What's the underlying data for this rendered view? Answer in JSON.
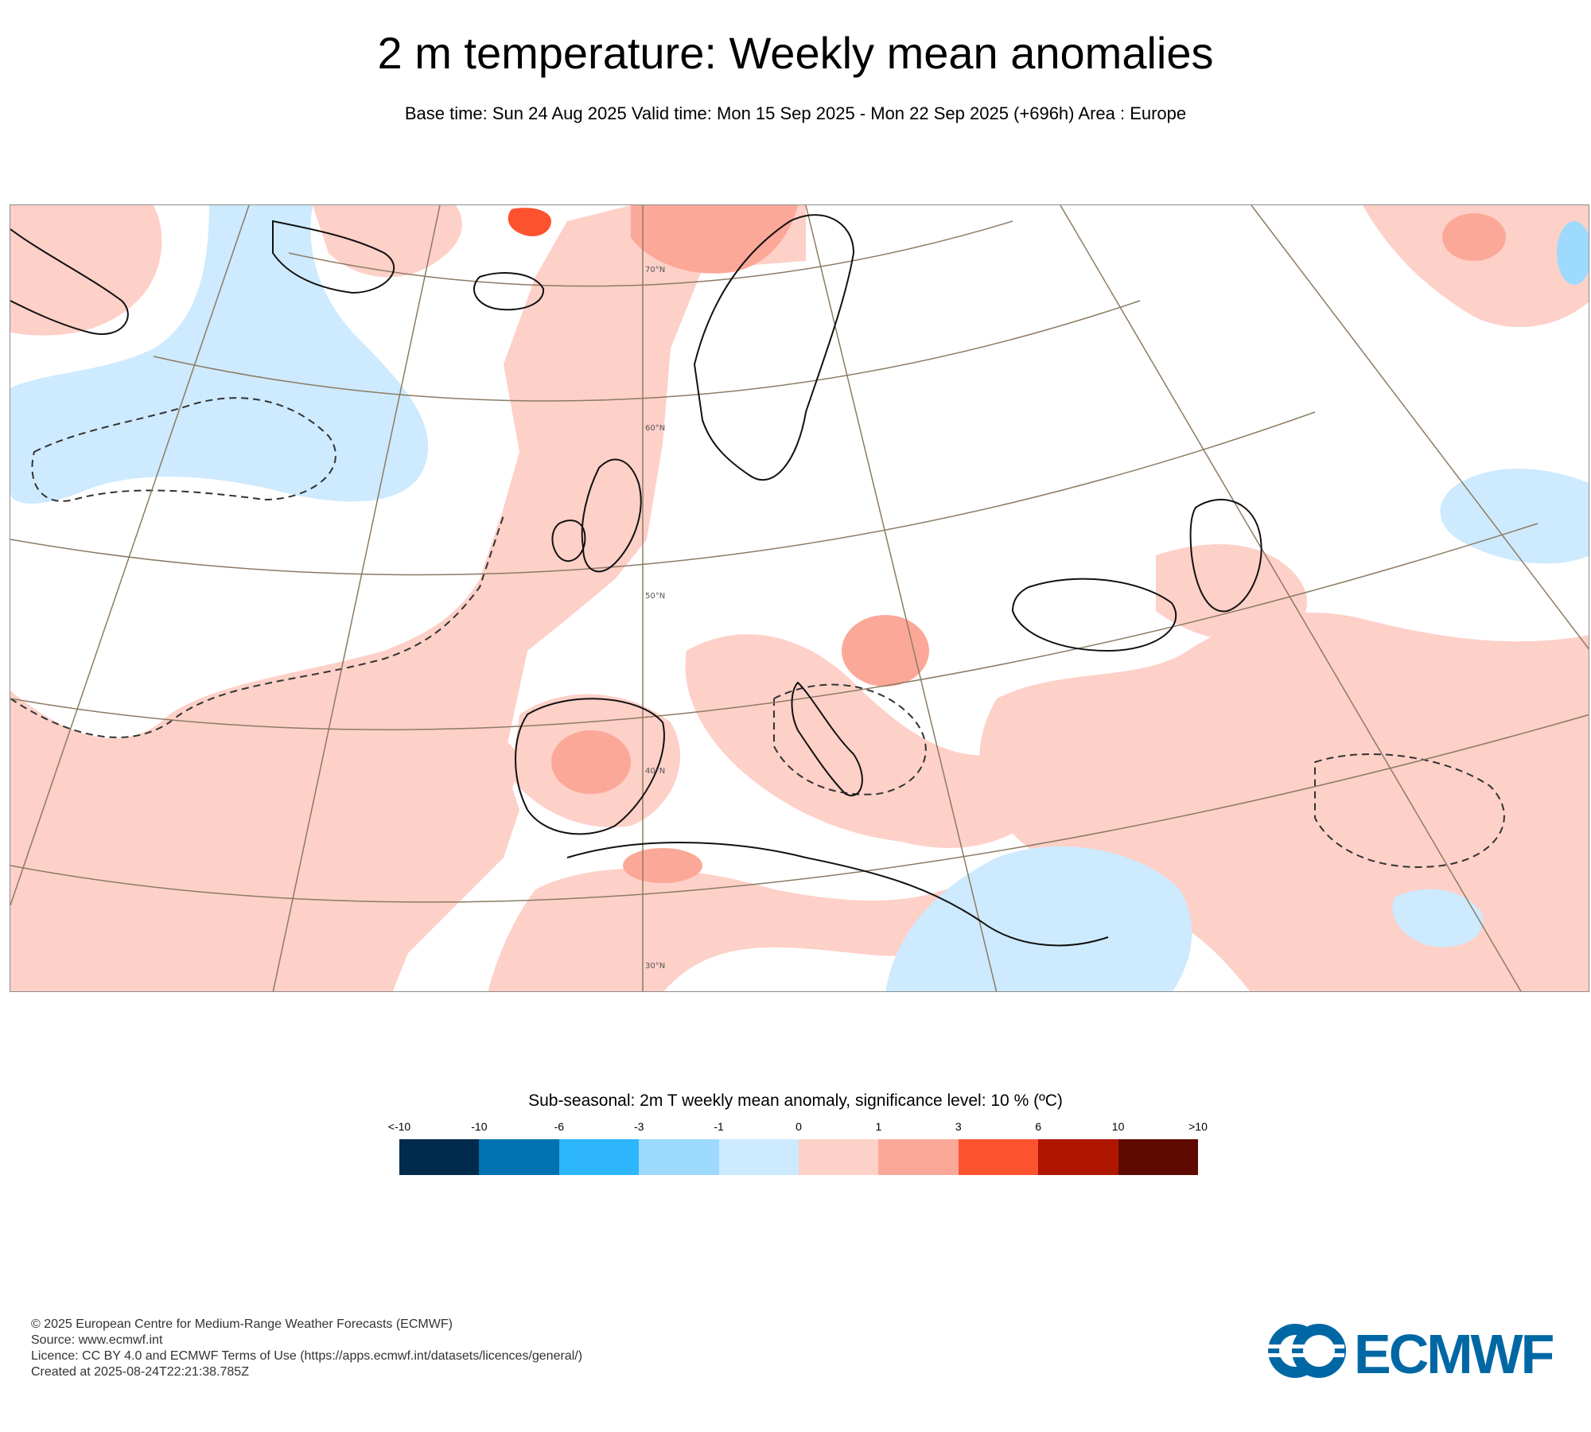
{
  "title": "2 m temperature: Weekly mean anomalies",
  "subtitle": "Base time: Sun 24 Aug 2025 Valid time: Mon 15 Sep 2025 - Mon 22 Sep 2025 (+696h) Area : Europe",
  "map": {
    "area": "Europe",
    "latitude_labels": [
      "70°N",
      "60°N",
      "50°N",
      "40°N",
      "30°N"
    ],
    "colors": {
      "neutral": "#ffffff",
      "warm_light": "#fdd0c8",
      "warm_medium": "#fca898",
      "warm_strong": "#fc5230",
      "cool_light": "#cdeafe",
      "cool_medium": "#9edafd",
      "coastline": "#111111",
      "graticule": "#8c7b63",
      "significance_contour": "#333333"
    }
  },
  "legend": {
    "title": "Sub-seasonal: 2m T weekly mean anomaly, significance level: 10 % (ºC)",
    "labels": [
      "<-10",
      "-10",
      "-6",
      "-3",
      "-1",
      "0",
      "1",
      "3",
      "6",
      "10",
      ">10"
    ],
    "colors": [
      "#002b4c",
      "#0072b2",
      "#2db6fc",
      "#9edafd",
      "#cdeafe",
      "#fdd0c8",
      "#fca898",
      "#fc5230",
      "#b01500",
      "#5e0a00"
    ]
  },
  "footer": {
    "copyright": "© 2025 European Centre for Medium-Range Weather Forecasts (ECMWF)",
    "source": "Source: www.ecmwf.int",
    "licence": "Licence: CC BY 4.0 and ECMWF Terms of Use (https://apps.ecmwf.int/datasets/licences/general/)",
    "created": "Created at 2025-08-24T22:21:38.785Z"
  },
  "logo": {
    "text": "ECMWF",
    "color": "#0067a5"
  }
}
